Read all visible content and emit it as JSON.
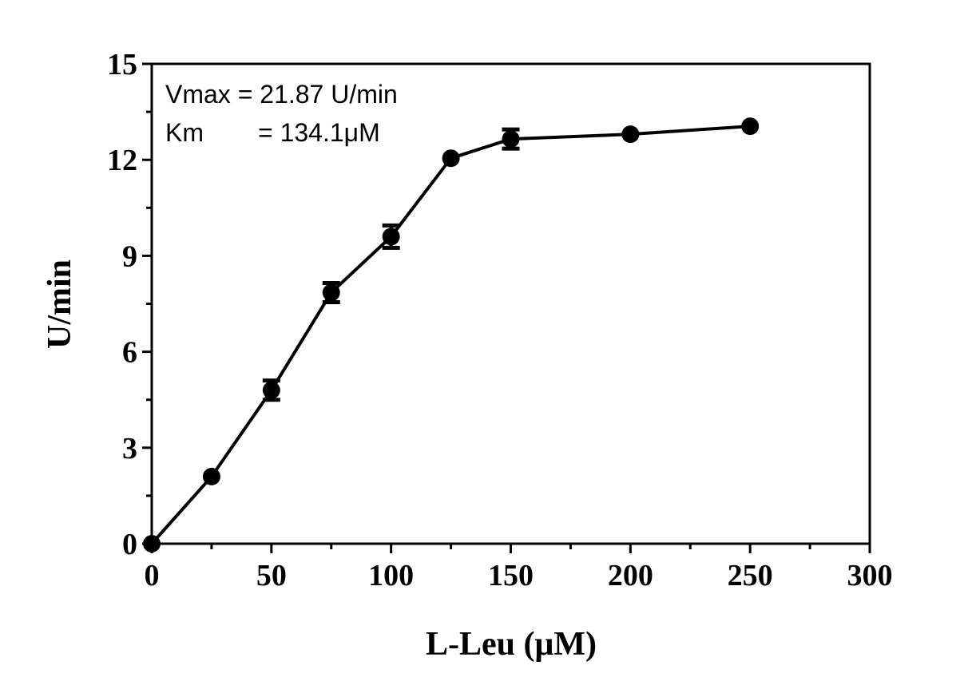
{
  "chart_data": {
    "type": "line",
    "title": "",
    "xlabel": "L-Leu (μM)",
    "ylabel": "U/min",
    "xlim": [
      0,
      300
    ],
    "ylim": [
      0,
      15
    ],
    "x_ticks": [
      0,
      50,
      100,
      150,
      200,
      250,
      300
    ],
    "x_tick_labels": [
      "0",
      "50",
      "100",
      "150",
      "200",
      "250",
      "300"
    ],
    "y_ticks": [
      0,
      3,
      6,
      9,
      12,
      15
    ],
    "y_tick_labels": [
      "0",
      "3",
      "6",
      "9",
      "12",
      "15"
    ],
    "grid": false,
    "legend": "none",
    "annotations": {
      "vmax": "Vmax = 21.87 U/min",
      "km_label": "Km",
      "km_value": "= 134.1μM"
    },
    "series": [
      {
        "x": [
          0,
          25,
          50,
          75,
          100,
          125,
          150,
          200,
          250
        ],
        "y": [
          0,
          2.1,
          4.8,
          7.85,
          9.6,
          12.05,
          12.65,
          12.8,
          13.05
        ],
        "error": [
          0,
          0.05,
          0.3,
          0.3,
          0.35,
          0.05,
          0.3,
          0.05,
          0.05
        ]
      }
    ],
    "color": "#000000"
  }
}
